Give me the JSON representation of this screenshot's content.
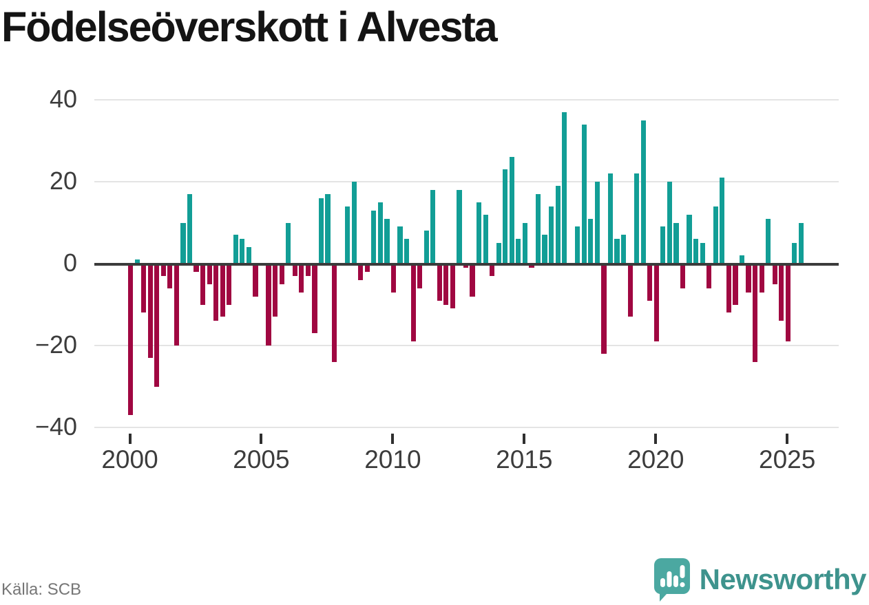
{
  "title": "Födelseöverskott i Alvesta",
  "source": "Källa: SCB",
  "branding": {
    "name": "Newsworthy"
  },
  "colors": {
    "positive_bar": "#129e96",
    "negative_bar": "#a00741",
    "zero_line": "#3b3b3b",
    "gridline": "#e4e4e4",
    "axis_text": "#3c3c3c",
    "source_text": "#767676",
    "brand_text": "#3e938d",
    "brand_icon": "#4ba8a1"
  },
  "y_axis": {
    "ticks": [
      40,
      20,
      0,
      -20,
      -40
    ],
    "labels": [
      "40",
      "20",
      "0",
      "−20",
      "−40"
    ]
  },
  "x_axis": {
    "ticks": [
      "2000",
      "2005",
      "2010",
      "2015",
      "2020",
      "2025"
    ]
  },
  "chart_data": {
    "type": "bar",
    "title": "Födelseöverskott i Alvesta",
    "xlabel": "",
    "ylabel": "",
    "ylim": [
      -40,
      40
    ],
    "grid": true,
    "frequency": "quarterly",
    "start": {
      "year": 2000,
      "quarter": 1
    },
    "series": [
      {
        "name": "Födelseöverskott",
        "values": [
          -37,
          1,
          -12,
          -23,
          -30,
          -3,
          -6,
          -20,
          10,
          17,
          -2,
          -10,
          -5,
          -14,
          -13,
          -10,
          7,
          6,
          4,
          -8,
          0,
          -20,
          -13,
          -5,
          10,
          -3,
          -7,
          -3,
          -17,
          16,
          17,
          -24,
          0,
          14,
          20,
          -4,
          -2,
          13,
          15,
          11,
          -7,
          9,
          6,
          -19,
          -6,
          8,
          18,
          -9,
          -10,
          -11,
          18,
          -1,
          -8,
          15,
          12,
          -3,
          5,
          23,
          26,
          6,
          10,
          -1,
          17,
          7,
          14,
          19,
          37,
          0,
          9,
          34,
          11,
          20,
          -22,
          22,
          6,
          7,
          -13,
          22,
          35,
          -9,
          -19,
          9,
          20,
          10,
          -6,
          12,
          6,
          5,
          -6,
          14,
          21,
          -12,
          -10,
          2,
          -7,
          -24,
          -7,
          11,
          -5,
          -14,
          -19,
          5,
          10
        ]
      }
    ]
  }
}
